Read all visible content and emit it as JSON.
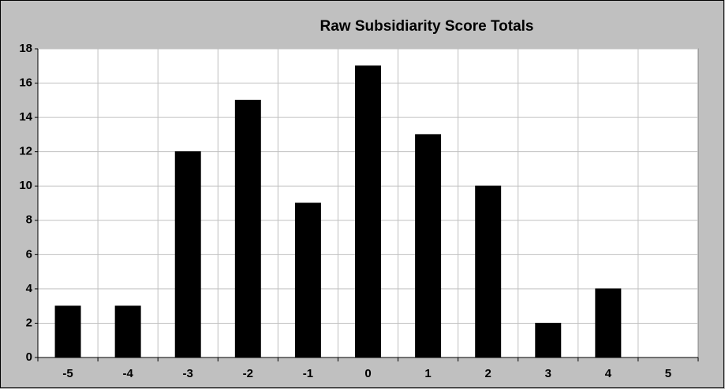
{
  "chart_data": {
    "type": "bar",
    "title": "Raw Subsidiarity Score Totals",
    "categories": [
      "-5",
      "-4",
      "-3",
      "-2",
      "-1",
      "0",
      "1",
      "2",
      "3",
      "4",
      "5"
    ],
    "values": [
      3,
      3,
      12,
      15,
      9,
      17,
      13,
      10,
      2,
      4,
      0
    ],
    "color": "#000000",
    "ylim": [
      0,
      18
    ],
    "yticks": [
      0,
      2,
      4,
      6,
      8,
      10,
      12,
      14,
      16,
      18
    ],
    "grid": true
  }
}
